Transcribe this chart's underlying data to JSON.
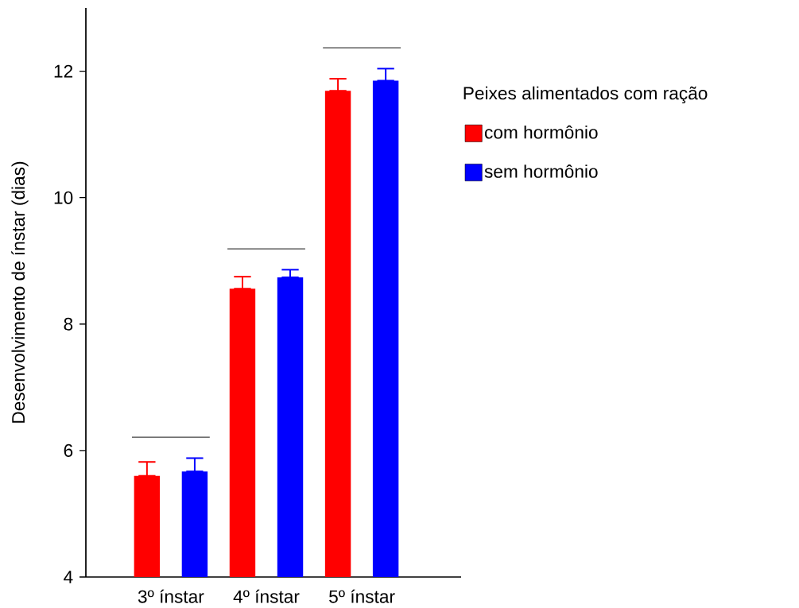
{
  "chart_data": {
    "type": "bar",
    "ylabel": "Desenvolvimento de ínstar (dias)",
    "legend_title": "Peixes alimentados com ração",
    "categories": [
      "3º ínstar",
      "4º ínstar",
      "5º ínstar"
    ],
    "series": [
      {
        "name": "com hormônio",
        "color": "#ff0000",
        "values": [
          5.6,
          8.56,
          11.69
        ],
        "errors": [
          [
            5.6,
            5.82
          ],
          [
            8.56,
            8.75
          ],
          [
            11.69,
            11.88
          ]
        ]
      },
      {
        "name": "sem hormônio",
        "color": "#0000ff",
        "values": [
          5.67,
          8.74,
          11.85
        ],
        "errors": [
          [
            5.67,
            5.88
          ],
          [
            8.74,
            8.86
          ],
          [
            11.85,
            12.04
          ]
        ]
      }
    ],
    "ylim": [
      4,
      13
    ],
    "yticks": [
      4,
      6,
      8,
      10,
      12
    ],
    "legend": "right",
    "grid": false
  }
}
